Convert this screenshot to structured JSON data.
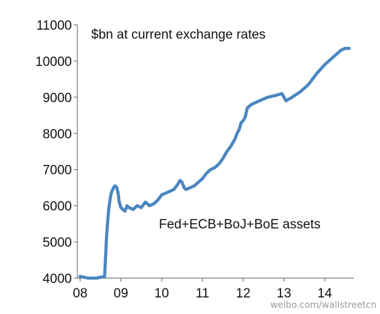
{
  "chart_data": {
    "type": "line",
    "title": "",
    "xlabel": "",
    "ylabel": "",
    "unit_note": "$bn at current exchange rates",
    "annotation": "Fed+ECB+BoJ+BoE assets",
    "x_ticks": [
      "08",
      "09",
      "10",
      "11",
      "12",
      "13",
      "14"
    ],
    "y_ticks": [
      "4000",
      "5000",
      "6000",
      "7000",
      "8000",
      "9000",
      "10000",
      "11000"
    ],
    "xlim": [
      2008.0,
      2014.6
    ],
    "ylim": [
      4000,
      11000
    ],
    "grid": false,
    "line_color": "#4a86c0",
    "series": [
      {
        "x": [
          2008.0,
          2008.2,
          2008.4,
          2008.6,
          2008.65,
          2008.7,
          2008.75,
          2008.78,
          2008.82,
          2008.86,
          2008.9,
          2008.93,
          2008.96,
          2009.0,
          2009.05,
          2009.1,
          2009.15,
          2009.2,
          2009.3,
          2009.4,
          2009.5,
          2009.6,
          2009.7,
          2009.8,
          2009.9,
          2010.0,
          2010.1,
          2010.2,
          2010.3,
          2010.4,
          2010.45,
          2010.5,
          2010.55,
          2010.6,
          2010.7,
          2010.8,
          2010.9,
          2011.0,
          2011.1,
          2011.2,
          2011.3,
          2011.4,
          2011.5,
          2011.6,
          2011.7,
          2011.8,
          2011.85,
          2011.9,
          2011.95,
          2012.0,
          2012.05,
          2012.1,
          2012.15,
          2012.2,
          2012.4,
          2012.6,
          2012.8,
          2012.95,
          2013.05,
          2013.2,
          2013.4,
          2013.6,
          2013.8,
          2014.0,
          2014.2,
          2014.4,
          2014.5,
          2014.6
        ],
        "values": [
          4050,
          4000,
          4000,
          4050,
          5200,
          5900,
          6300,
          6400,
          6500,
          6550,
          6500,
          6350,
          6100,
          5950,
          5900,
          5850,
          6000,
          5950,
          5900,
          6000,
          5950,
          6100,
          6000,
          6050,
          6150,
          6300,
          6350,
          6400,
          6450,
          6600,
          6700,
          6650,
          6500,
          6450,
          6500,
          6550,
          6650,
          6750,
          6900,
          7000,
          7050,
          7150,
          7300,
          7500,
          7650,
          7850,
          8000,
          8100,
          8300,
          8350,
          8450,
          8700,
          8750,
          8800,
          8900,
          9000,
          9050,
          9100,
          8900,
          9000,
          9150,
          9350,
          9650,
          9900,
          10100,
          10300,
          10350,
          10350
        ]
      }
    ]
  },
  "watermark": "weibo.com/wallstreetcn"
}
